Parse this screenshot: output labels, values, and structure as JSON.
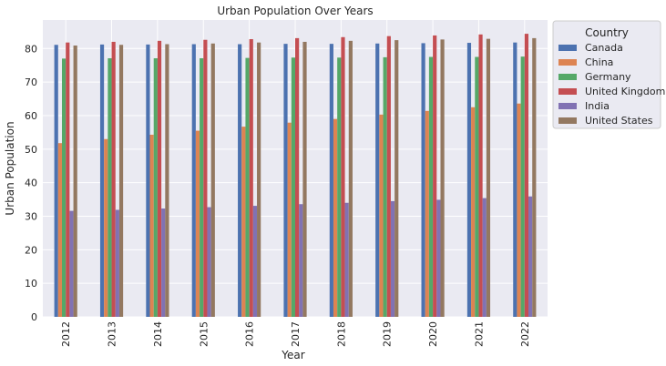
{
  "chart_data": {
    "type": "bar",
    "title": "Urban Population Over Years",
    "xlabel": "Year",
    "ylabel": "Urban Population",
    "ylim": [
      0,
      88.5
    ],
    "yticks": [
      0,
      10,
      20,
      30,
      40,
      50,
      60,
      70,
      80
    ],
    "grid": true,
    "legend_title": "Country",
    "legend_position": "outside-top-right",
    "categories": [
      "2012",
      "2013",
      "2014",
      "2015",
      "2016",
      "2017",
      "2018",
      "2019",
      "2020",
      "2021",
      "2022"
    ],
    "series": [
      {
        "name": "Canada",
        "color": "#4c72b0",
        "values": [
          81.1,
          81.2,
          81.2,
          81.3,
          81.3,
          81.4,
          81.4,
          81.5,
          81.6,
          81.7,
          81.8
        ]
      },
      {
        "name": "China",
        "color": "#dd8452",
        "values": [
          51.8,
          53.0,
          54.3,
          55.5,
          56.7,
          57.9,
          59.0,
          60.3,
          61.4,
          62.5,
          63.6
        ]
      },
      {
        "name": "Germany",
        "color": "#55a868",
        "values": [
          77.0,
          77.1,
          77.1,
          77.1,
          77.2,
          77.3,
          77.3,
          77.4,
          77.5,
          77.5,
          77.6
        ]
      },
      {
        "name": "United Kingdom",
        "color": "#c44e52",
        "values": [
          81.8,
          82.0,
          82.3,
          82.6,
          82.8,
          83.1,
          83.4,
          83.7,
          83.9,
          84.2,
          84.4
        ]
      },
      {
        "name": "India",
        "color": "#8172b3",
        "values": [
          31.6,
          31.9,
          32.3,
          32.7,
          33.1,
          33.6,
          34.0,
          34.5,
          34.9,
          35.4,
          35.9
        ]
      },
      {
        "name": "United States",
        "color": "#937860",
        "values": [
          80.9,
          81.1,
          81.3,
          81.5,
          81.8,
          82.0,
          82.3,
          82.5,
          82.7,
          82.9,
          83.1
        ]
      }
    ]
  }
}
